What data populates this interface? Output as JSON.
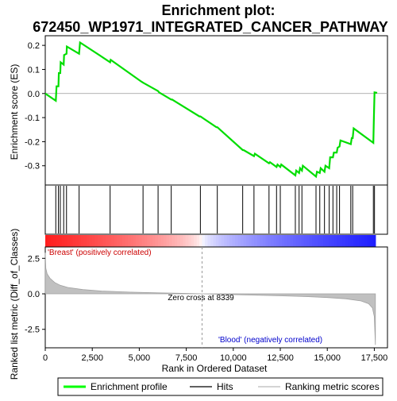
{
  "chart_data": {
    "type": "line",
    "title_line1": "Enrichment plot:",
    "title_line2": "672450_WP1971_INTEGRATED_CANCER_PATHWAY",
    "es_panel": {
      "ylabel": "Enrichment score (ES)",
      "ylim": [
        -0.38,
        0.24
      ],
      "yticks": [
        -0.3,
        -0.2,
        -0.1,
        0.0,
        0.1,
        0.2
      ],
      "ytick_labels": [
        "-0.3",
        "-0.2",
        "-0.1",
        "0.0",
        "0.1",
        "0.2"
      ],
      "color": "#00dd00",
      "points": [
        [
          0,
          0.0
        ],
        [
          560,
          -0.03
        ],
        [
          600,
          0.03
        ],
        [
          700,
          0.03
        ],
        [
          720,
          0.085
        ],
        [
          800,
          0.085
        ],
        [
          820,
          0.13
        ],
        [
          980,
          0.12
        ],
        [
          1000,
          0.16
        ],
        [
          1130,
          0.165
        ],
        [
          1150,
          0.195
        ],
        [
          1800,
          0.165
        ],
        [
          1850,
          0.212
        ],
        [
          3450,
          0.13
        ],
        [
          3480,
          0.14
        ],
        [
          5100,
          0.05
        ],
        [
          5200,
          0.045
        ],
        [
          6000,
          0.01
        ],
        [
          6050,
          0.005
        ],
        [
          6700,
          -0.025
        ],
        [
          6750,
          -0.025
        ],
        [
          8200,
          -0.095
        ],
        [
          8250,
          -0.095
        ],
        [
          9100,
          -0.14
        ],
        [
          9150,
          -0.14
        ],
        [
          10500,
          -0.235
        ],
        [
          10550,
          -0.235
        ],
        [
          11100,
          -0.26
        ],
        [
          11150,
          -0.25
        ],
        [
          11900,
          -0.29
        ],
        [
          11950,
          -0.285
        ],
        [
          12300,
          -0.305
        ],
        [
          12350,
          -0.295
        ],
        [
          12500,
          -0.305
        ],
        [
          12550,
          -0.295
        ],
        [
          13300,
          -0.34
        ],
        [
          13350,
          -0.32
        ],
        [
          13500,
          -0.33
        ],
        [
          13550,
          -0.31
        ],
        [
          13650,
          -0.32
        ],
        [
          13700,
          -0.3
        ],
        [
          14400,
          -0.345
        ],
        [
          14450,
          -0.325
        ],
        [
          14600,
          -0.33
        ],
        [
          14650,
          -0.31
        ],
        [
          14850,
          -0.325
        ],
        [
          14900,
          -0.3
        ],
        [
          15100,
          -0.31
        ],
        [
          15150,
          -0.265
        ],
        [
          15300,
          -0.265
        ],
        [
          15350,
          -0.245
        ],
        [
          15500,
          -0.245
        ],
        [
          15550,
          -0.225
        ],
        [
          15650,
          -0.22
        ],
        [
          15700,
          -0.195
        ],
        [
          16250,
          -0.21
        ],
        [
          16300,
          -0.185
        ],
        [
          16350,
          -0.185
        ],
        [
          16400,
          -0.145
        ],
        [
          17450,
          -0.205
        ],
        [
          17480,
          -0.1
        ],
        [
          17510,
          0.005
        ],
        [
          17650,
          0.003
        ]
      ]
    },
    "hits": [
      560,
      700,
      800,
      980,
      1130,
      1800,
      3450,
      5200,
      6000,
      6700,
      8250,
      9150,
      10500,
      11100,
      11900,
      12300,
      12500,
      13300,
      13500,
      13650,
      14400,
      14600,
      14850,
      15100,
      15300,
      15500,
      15650,
      16250,
      16350,
      17450,
      17510
    ],
    "ranked_panel": {
      "ylabel": "Ranked list metric (Diff_of_Classes)",
      "xlabel": "Rank in Ordered Dataset",
      "ylim": [
        -3.8,
        3.3
      ],
      "yticks": [
        -2.5,
        0.0,
        2.5
      ],
      "ytick_labels": [
        "-2.5",
        "0.0",
        "2.5"
      ],
      "xlim": [
        0,
        18200
      ],
      "xticks": [
        0,
        2500,
        5000,
        7500,
        10000,
        12500,
        15000,
        17500
      ],
      "xtick_labels": [
        "0",
        "2,500",
        "5,000",
        "7,500",
        "10,000",
        "12,500",
        "15,000",
        "17,500"
      ],
      "zero_cross": 8339,
      "zero_cross_label": "Zero cross at 8339",
      "positive_label": "'Breast' (positively correlated)",
      "negative_label": "'Blood' (negatively correlated)",
      "metric_curve": [
        [
          0,
          2.9
        ],
        [
          30,
          1.8
        ],
        [
          100,
          1.4
        ],
        [
          250,
          1.1
        ],
        [
          500,
          0.8
        ],
        [
          800,
          0.6
        ],
        [
          1200,
          0.45
        ],
        [
          2000,
          0.3
        ],
        [
          3000,
          0.2
        ],
        [
          4500,
          0.12
        ],
        [
          6000,
          0.07
        ],
        [
          7500,
          0.03
        ],
        [
          8339,
          0.0
        ],
        [
          9500,
          -0.04
        ],
        [
          11000,
          -0.09
        ],
        [
          12500,
          -0.14
        ],
        [
          14000,
          -0.2
        ],
        [
          15000,
          -0.26
        ],
        [
          16000,
          -0.35
        ],
        [
          16800,
          -0.5
        ],
        [
          17200,
          -0.7
        ],
        [
          17400,
          -1.0
        ],
        [
          17500,
          -1.6
        ],
        [
          17560,
          -3.6
        ]
      ]
    },
    "heatmap_colors": {
      "positive": "#ff0000",
      "negative": "#0000ff",
      "neutral": "#ffffff"
    },
    "legend": {
      "items": [
        {
          "label": "Enrichment profile",
          "color": "#00ff00",
          "style": "thick-line"
        },
        {
          "label": "Hits",
          "color": "#000000",
          "style": "thin-line"
        },
        {
          "label": "Ranking metric scores",
          "color": "#bbbbbb",
          "style": "thin-line"
        }
      ]
    }
  }
}
